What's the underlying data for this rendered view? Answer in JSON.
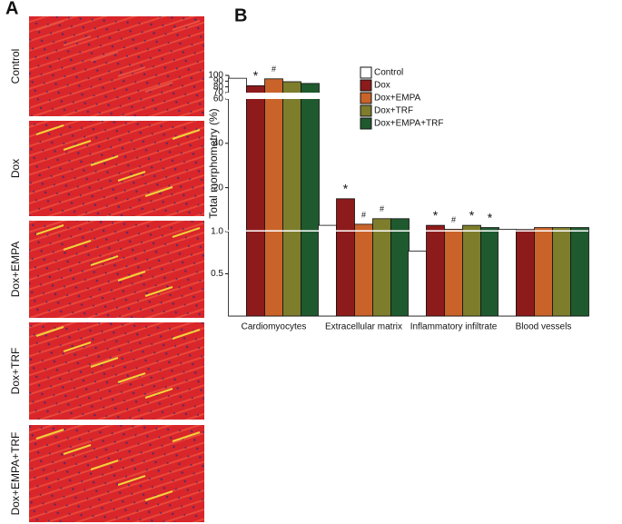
{
  "figure": {
    "panel_labels": [
      "A",
      "B"
    ],
    "image_labels": [
      "Control",
      "Dox",
      "Dox+EMPA",
      "Dox+TRF",
      "Dox+EMPA+TRF"
    ]
  },
  "chart_data": {
    "type": "bar",
    "y_label": "Total morphometry (%)",
    "categories": [
      "Cardiomyocytes",
      "Extracellular matrix",
      "Inflammatory infiltrate",
      "Blood vessels"
    ],
    "series": [
      {
        "name": "Control",
        "color": "#ffffff",
        "values": [
          95,
          3,
          0.77,
          1.2
        ]
      },
      {
        "name": "Dox",
        "color": "#8e1b1b",
        "values": [
          82,
          15,
          3,
          1.1
        ]
      },
      {
        "name": "Dox+EMPA",
        "color": "#c9632a",
        "values": [
          94,
          3.5,
          1.2,
          2
        ]
      },
      {
        "name": "Dox+TRF",
        "color": "#7d7d2c",
        "values": [
          89,
          6,
          3,
          2
        ]
      },
      {
        "name": "Dox+EMPA+TRF",
        "color": "#1f5a2e",
        "values": [
          86,
          6,
          2,
          2
        ]
      }
    ],
    "y_segments": [
      {
        "ylim": [
          0,
          1
        ],
        "yticks": [
          0.5,
          {
            "value": 1,
            "label": "1.0"
          }
        ]
      },
      {
        "ylim": [
          1,
          60
        ],
        "yticks": [
          20,
          40,
          60
        ]
      },
      {
        "ylim": [
          70,
          100
        ],
        "yticks": [
          70,
          80,
          90,
          100
        ]
      }
    ],
    "annotations": [
      {
        "text": "*",
        "series": "Dox",
        "category": "Cardiomyocytes"
      },
      {
        "text": "#",
        "series": "Dox+EMPA",
        "category": "Cardiomyocytes"
      },
      {
        "text": "*",
        "series": "Dox",
        "category": "Extracellular matrix"
      },
      {
        "text": "#",
        "series": "Dox+EMPA",
        "category": "Extracellular matrix"
      },
      {
        "text": "#",
        "series": "Dox+TRF",
        "category": "Extracellular matrix"
      },
      {
        "text": "*",
        "series": "Dox",
        "category": "Inflammatory infiltrate"
      },
      {
        "text": "#",
        "series": "Dox+EMPA",
        "category": "Inflammatory infiltrate"
      },
      {
        "text": "*",
        "series": "Dox+TRF",
        "category": "Inflammatory infiltrate"
      },
      {
        "text": "*",
        "series": "Dox+EMPA+TRF",
        "category": "Inflammatory infiltrate"
      }
    ],
    "legend": "top-right"
  }
}
